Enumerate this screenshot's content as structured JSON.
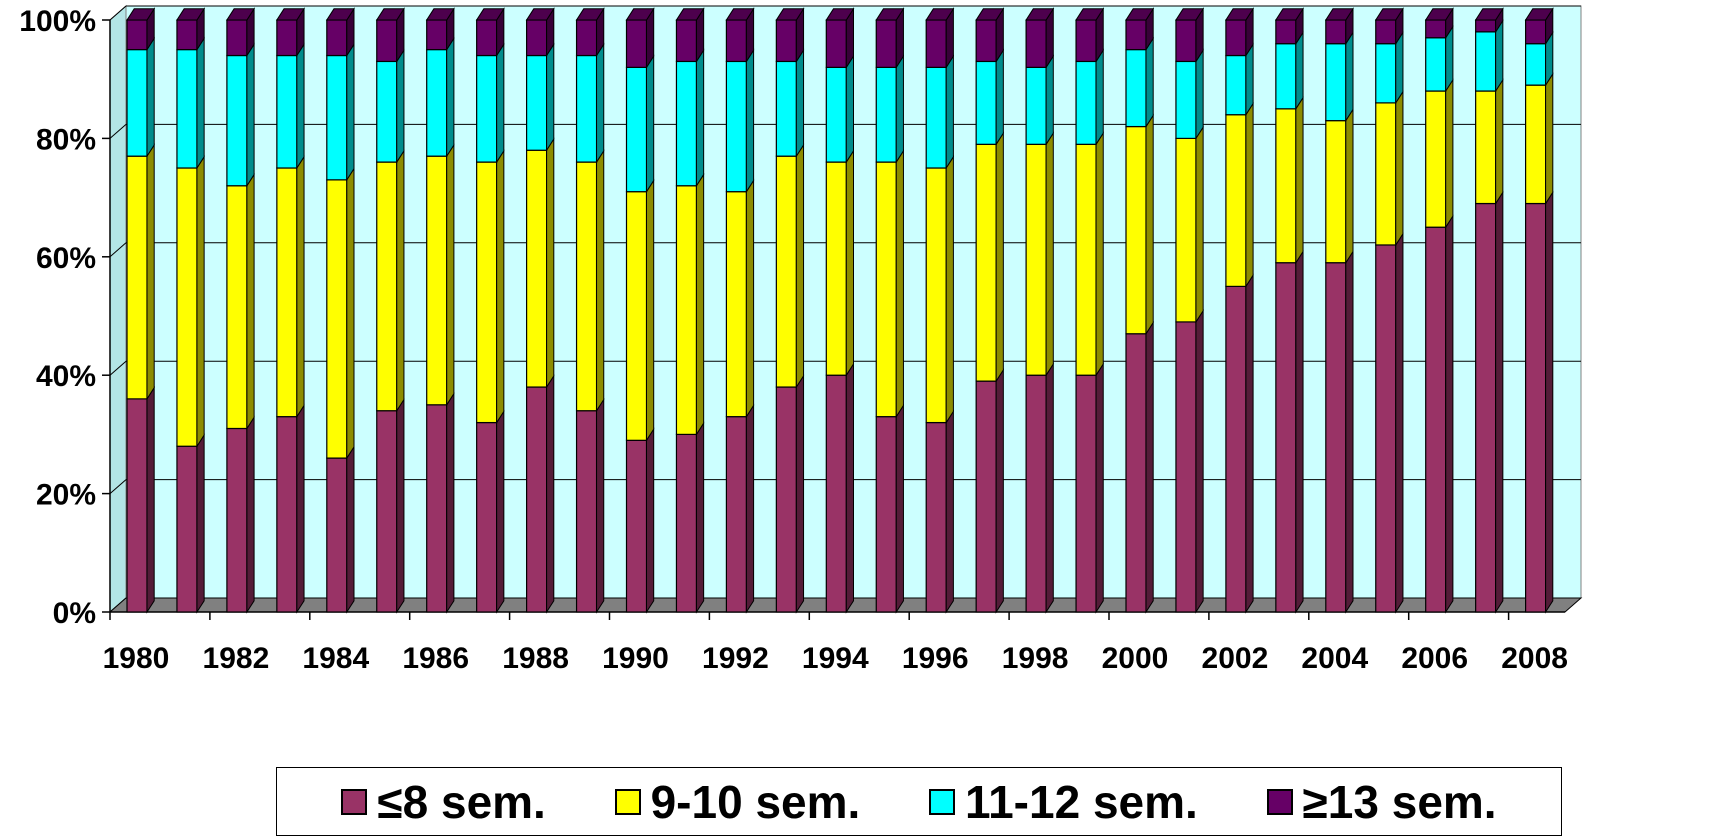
{
  "chart_data": {
    "type": "bar",
    "stacked": true,
    "percent_stacked": true,
    "three_d": true,
    "ylim": [
      0,
      100
    ],
    "y_ticks": [
      "0%",
      "20%",
      "40%",
      "60%",
      "80%",
      "100%"
    ],
    "x_tick_labels": [
      "1980",
      "1982",
      "1984",
      "1986",
      "1988",
      "1990",
      "1992",
      "1994",
      "1996",
      "1998",
      "2000",
      "2002",
      "2004",
      "2006",
      "2008"
    ],
    "categories": [
      1980,
      1981,
      1982,
      1983,
      1984,
      1985,
      1986,
      1987,
      1988,
      1989,
      1990,
      1991,
      1992,
      1993,
      1994,
      1995,
      1996,
      1997,
      1998,
      1999,
      2000,
      2001,
      2002,
      2003,
      2004,
      2005,
      2006,
      2007,
      2008
    ],
    "series": [
      {
        "name": "≤8 sem.",
        "color": "#993366",
        "values": [
          36,
          28,
          31,
          33,
          26,
          34,
          35,
          32,
          38,
          34,
          29,
          30,
          33,
          38,
          40,
          33,
          32,
          39,
          40,
          40,
          47,
          49,
          55,
          59,
          59,
          62,
          65,
          69,
          69
        ]
      },
      {
        "name": "9-10 sem.",
        "color": "#ffff00",
        "values": [
          41,
          47,
          41,
          42,
          47,
          42,
          42,
          44,
          40,
          42,
          42,
          42,
          38,
          39,
          36,
          43,
          43,
          40,
          39,
          39,
          35,
          31,
          29,
          26,
          24,
          24,
          23,
          19,
          20
        ]
      },
      {
        "name": "11-12 sem.",
        "color": "#00ffff",
        "values": [
          18,
          20,
          22,
          19,
          21,
          17,
          18,
          18,
          16,
          18,
          21,
          21,
          22,
          16,
          16,
          16,
          17,
          14,
          13,
          14,
          13,
          13,
          10,
          11,
          13,
          10,
          9,
          10,
          7
        ]
      },
      {
        "name": "≥13 sem.",
        "color": "#660066",
        "values": [
          5,
          5,
          6,
          6,
          6,
          7,
          5,
          6,
          6,
          6,
          8,
          7,
          7,
          7,
          8,
          8,
          8,
          7,
          8,
          7,
          5,
          7,
          6,
          4,
          4,
          4,
          3,
          2,
          4
        ]
      }
    ],
    "plot_background": "#ccffff",
    "floor_color": "#808080",
    "gridlines": true,
    "legend_position": "bottom"
  }
}
